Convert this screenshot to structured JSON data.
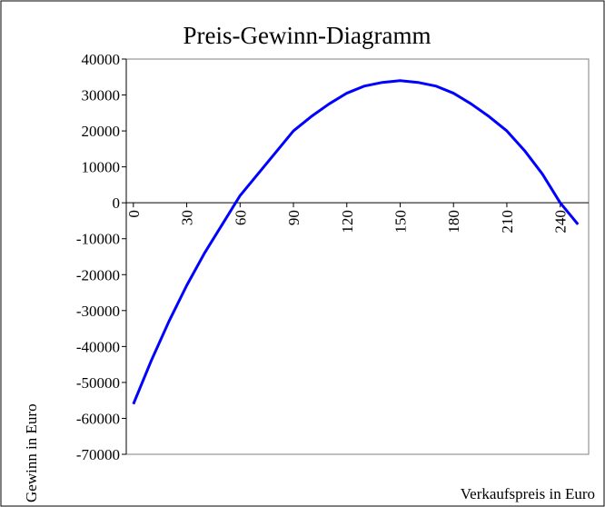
{
  "chart_data": {
    "type": "line",
    "title": "Preis-Gewinn-Diagramm",
    "x_label": "Verkaufspreis in Euro",
    "y_label": "Gewinn in Euro",
    "series": [
      {
        "name": "Gewinn",
        "color": "#0000ff",
        "x": [
          0,
          10,
          20,
          30,
          40,
          50,
          60,
          70,
          80,
          85,
          90,
          100,
          110,
          120,
          130,
          140,
          150,
          160,
          170,
          180,
          190,
          200,
          210,
          220,
          230,
          240,
          250
        ],
        "values": [
          -56000,
          -44000,
          -33000,
          -23000,
          -14000,
          -6000,
          2000,
          8000,
          14000,
          17000,
          20000,
          24000,
          27500,
          30500,
          32500,
          33500,
          34000,
          33500,
          32500,
          30500,
          27500,
          24000,
          20000,
          14500,
          8000,
          0,
          -6000
        ]
      }
    ],
    "xlim": [
      -4,
      256
    ],
    "xticks": [
      0,
      30,
      60,
      90,
      120,
      150,
      180,
      210,
      240
    ],
    "ylim": [
      -70000,
      40000
    ],
    "yticks": [
      -70000,
      -60000,
      -50000,
      -40000,
      -30000,
      -20000,
      -10000,
      0,
      10000,
      20000,
      30000,
      40000
    ],
    "grid": false
  }
}
